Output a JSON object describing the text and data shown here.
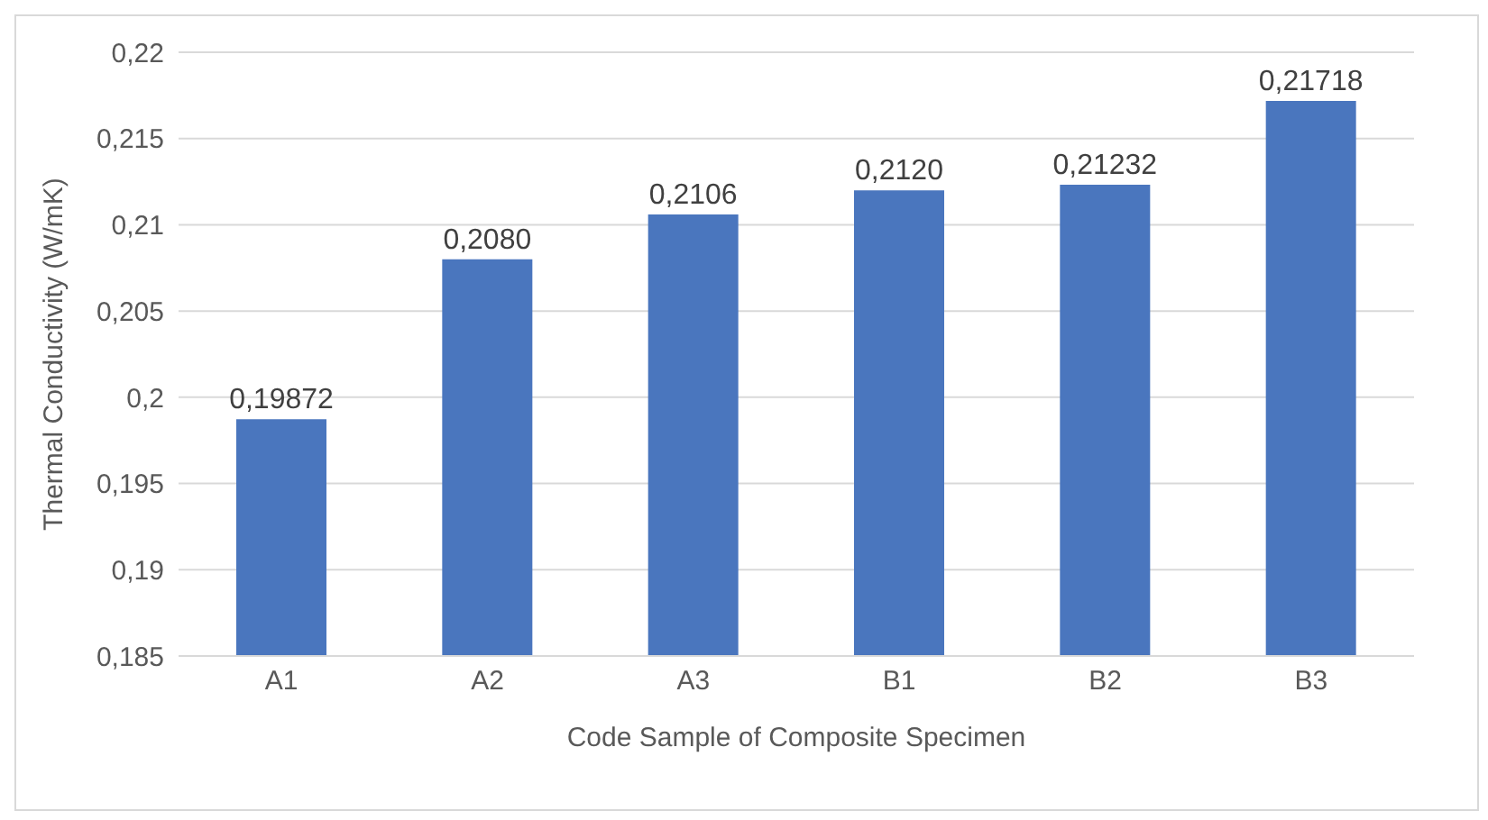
{
  "chart_data": {
    "type": "bar",
    "xlabel": "Code Sample of Composite Specimen",
    "ylabel": "Thermal Conductivity (W/mK)",
    "categories": [
      "A1",
      "A2",
      "A3",
      "B1",
      "B2",
      "B3"
    ],
    "values": [
      0.19872,
      0.208,
      0.2106,
      0.212,
      0.21232,
      0.21718
    ],
    "value_labels": [
      "0,19872",
      "0,2080",
      "0,2106",
      "0,2120",
      "0,21232",
      "0,21718"
    ],
    "color": "#4a76be",
    "ylim": [
      0.185,
      0.22
    ],
    "yticks": [
      {
        "value": 0.185,
        "label": "0,185"
      },
      {
        "value": 0.19,
        "label": "0,19"
      },
      {
        "value": 0.195,
        "label": "0,195"
      },
      {
        "value": 0.2,
        "label": "0,2"
      },
      {
        "value": 0.205,
        "label": "0,205"
      },
      {
        "value": 0.21,
        "label": "0,21"
      },
      {
        "value": 0.215,
        "label": "0,215"
      },
      {
        "value": 0.22,
        "label": "0,22"
      }
    ],
    "grid": "y"
  }
}
